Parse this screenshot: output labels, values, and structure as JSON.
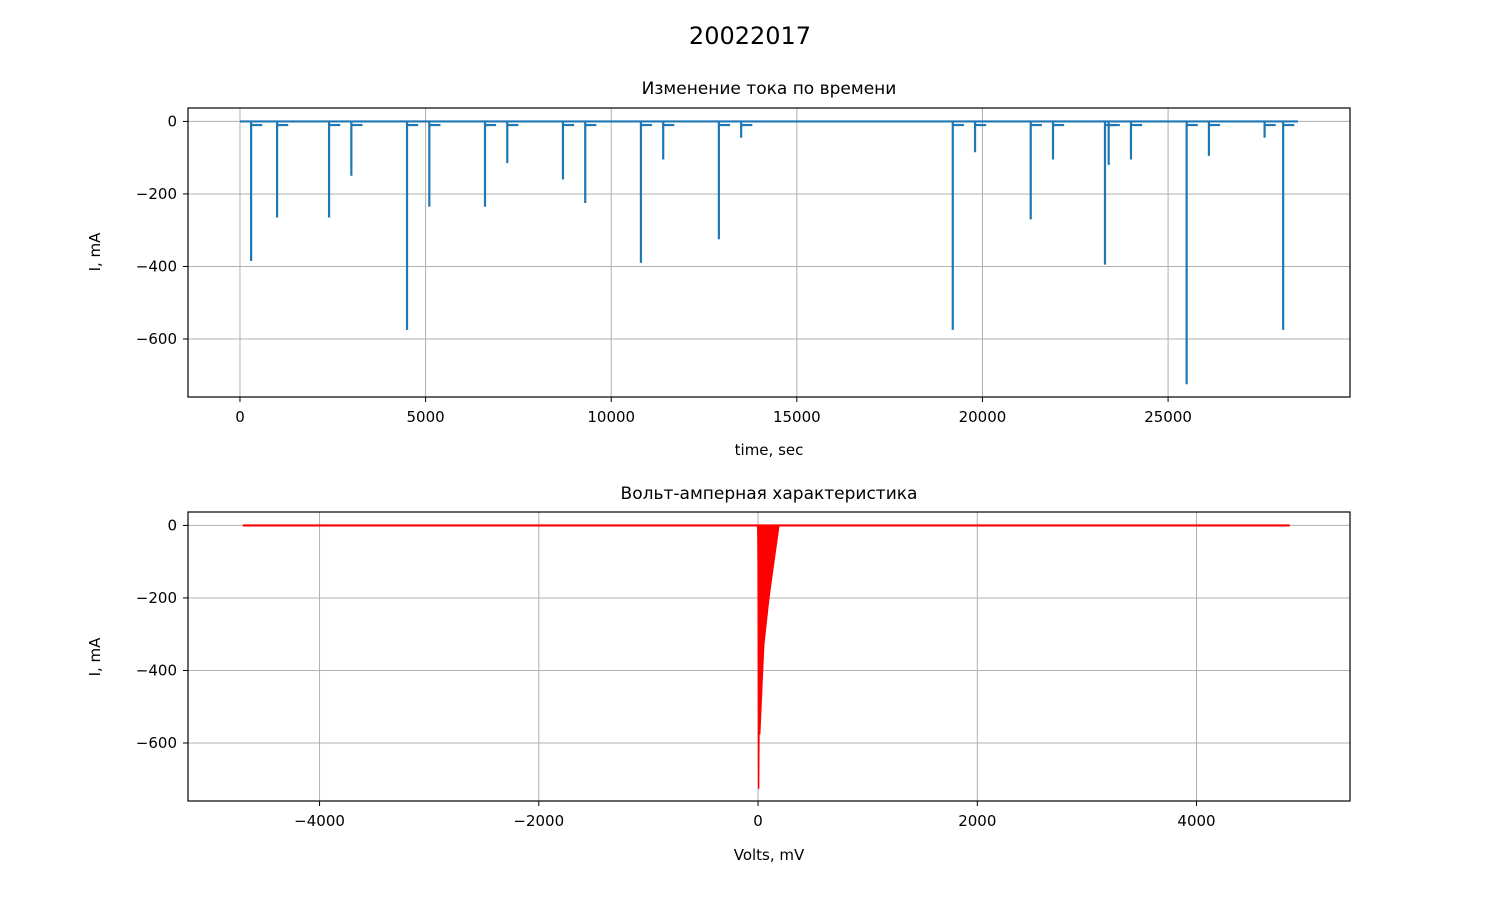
{
  "figure": {
    "suptitle": "20022017"
  },
  "colors": {
    "series_top": "#1f77b4",
    "series_bottom": "#ff0000",
    "grid": "#b0b0b0",
    "axis": "#000000"
  },
  "chart_data": [
    {
      "type": "line",
      "title": "Изменение тока по времени",
      "xlabel": "time, sec",
      "ylabel": "I, mA",
      "xlim": [
        -1400,
        29900
      ],
      "ylim": [
        -760,
        37
      ],
      "xticks": [
        0,
        5000,
        10000,
        15000,
        20000,
        25000
      ],
      "xtick_labels": [
        "0",
        "5000",
        "10000",
        "15000",
        "20000",
        "25000"
      ],
      "yticks": [
        0,
        -200,
        -400,
        -600
      ],
      "ytick_labels": [
        "0",
        "−200",
        "−400",
        "−600"
      ],
      "grid": true,
      "x_range": [
        0,
        28500
      ],
      "baseline": 0,
      "spikes": [
        {
          "x": 300,
          "y": -385
        },
        {
          "x": 1000,
          "y": -265
        },
        {
          "x": 2400,
          "y": -265
        },
        {
          "x": 3000,
          "y": -150
        },
        {
          "x": 4500,
          "y": -575
        },
        {
          "x": 5100,
          "y": -235
        },
        {
          "x": 6600,
          "y": -235
        },
        {
          "x": 7200,
          "y": -115
        },
        {
          "x": 8700,
          "y": -160
        },
        {
          "x": 9300,
          "y": -225
        },
        {
          "x": 10800,
          "y": -390
        },
        {
          "x": 11400,
          "y": -105
        },
        {
          "x": 12900,
          "y": -325
        },
        {
          "x": 13500,
          "y": -45
        },
        {
          "x": 19200,
          "y": -575
        },
        {
          "x": 19800,
          "y": -85
        },
        {
          "x": 21300,
          "y": -270
        },
        {
          "x": 21900,
          "y": -105
        },
        {
          "x": 23300,
          "y": -395
        },
        {
          "x": 23400,
          "y": -120
        },
        {
          "x": 24000,
          "y": -105
        },
        {
          "x": 25500,
          "y": -725
        },
        {
          "x": 26100,
          "y": -95
        },
        {
          "x": 27600,
          "y": -45
        },
        {
          "x": 28100,
          "y": -575
        }
      ]
    },
    {
      "type": "line",
      "title": "Вольт-амперная характеристика",
      "xlabel": "Volts, mV",
      "ylabel": "I, mA",
      "xlim": [
        -5200,
        5400
      ],
      "ylim": [
        -760,
        37
      ],
      "xticks": [
        -4000,
        -2000,
        0,
        2000,
        4000
      ],
      "xtick_labels": [
        "−4000",
        "−2000",
        "0",
        "2000",
        "4000"
      ],
      "yticks": [
        0,
        -200,
        -400,
        -600
      ],
      "ytick_labels": [
        "0",
        "−200",
        "−400",
        "−600"
      ],
      "grid": true,
      "x_range": [
        -4700,
        4850
      ],
      "baseline": 0,
      "branches": [
        {
          "x_peak": 5,
          "y_peak": -725,
          "x_zero": 20
        },
        {
          "x_peak": 10,
          "y_peak": -575,
          "x_zero": 60
        },
        {
          "x_peak": 15,
          "y_peak": -575,
          "x_zero": 100
        },
        {
          "x_peak": 20,
          "y_peak": -395,
          "x_zero": 140
        },
        {
          "x_peak": 30,
          "y_peak": -390,
          "x_zero": 170
        },
        {
          "x_peak": 40,
          "y_peak": -325,
          "x_zero": 190
        }
      ]
    }
  ]
}
